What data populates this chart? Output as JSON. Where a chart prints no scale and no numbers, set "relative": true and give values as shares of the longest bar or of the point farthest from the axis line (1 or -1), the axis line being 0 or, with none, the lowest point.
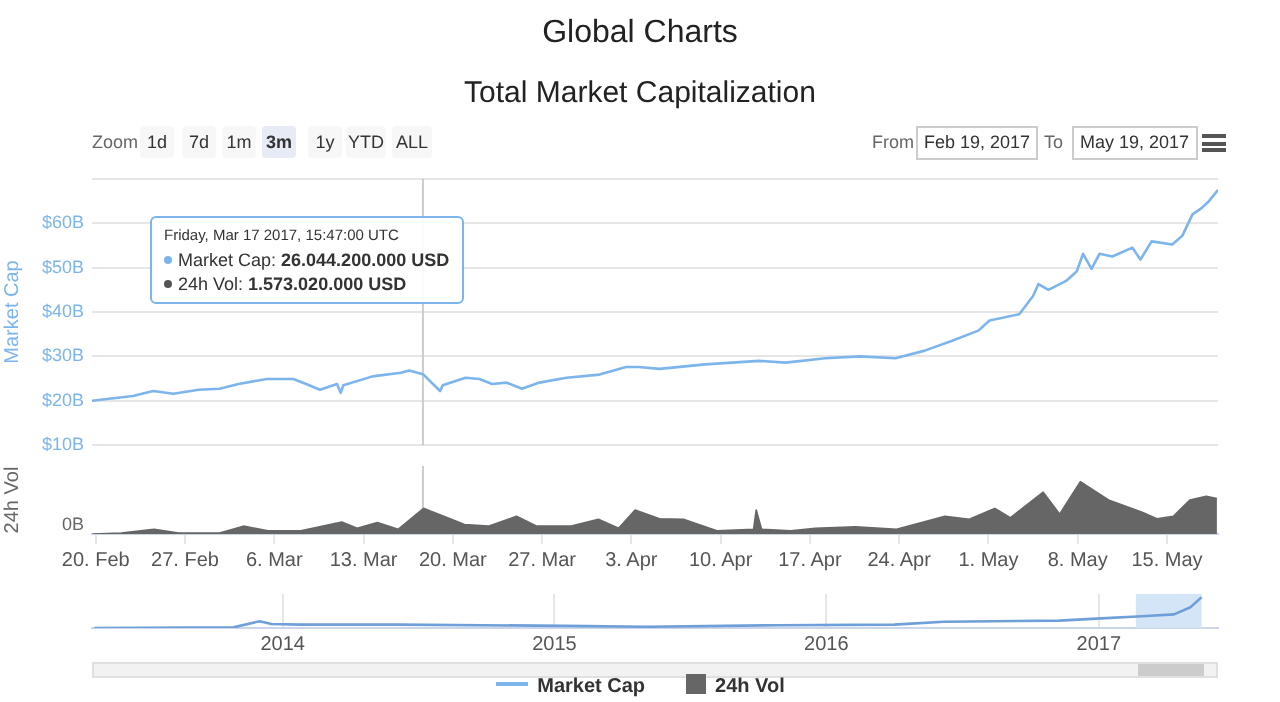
{
  "chart_data": [
    {
      "type": "other",
      "annotations": [
        "Zoom",
        "1d",
        "7d",
        "1m",
        "3m",
        "1y",
        "YTD",
        "ALL",
        "From",
        "Feb 19, 2017",
        "To",
        "May 19, 2017"
      ]
    },
    {
      "type": "line",
      "title": "Global Charts",
      "subtitle": "Total Market Capitalization",
      "ylabel": "Market Cap",
      "legend": "bottom",
      "grid": "y",
      "tick_labels": "y",
      "xlim": [
        "2017-02-19T17:00",
        "2017-05-19T00:00"
      ],
      "ylim": [
        10,
        70
      ],
      "yticks": [
        {
          "value": 10,
          "label": "$10B"
        },
        {
          "value": 20,
          "label": "$20B"
        },
        {
          "value": 30,
          "label": "$30B"
        },
        {
          "value": 40,
          "label": "$40B"
        },
        {
          "value": 50,
          "label": "$50B"
        },
        {
          "value": 60,
          "label": "$60B"
        },
        {
          "value": 70,
          "label": null
        }
      ],
      "ref_lines": [
        {
          "axis": "x",
          "value": "2017-03-17T15:47",
          "color": "#cccccc"
        }
      ],
      "annotations": [
        "Friday, Mar 17 2017, 15:47:00 UTC",
        "Market Cap: 26.044.200.000 USD",
        "24h Vol: 1.573.020.000 USD"
      ],
      "series": [
        {
          "name": "Market Cap",
          "color": "#7cb5ec",
          "x": [
            "2017-02-19T17:00",
            "2017-02-22T22:00",
            "2017-02-24T12:00",
            "2017-02-26T02:00",
            "2017-02-28T02:00",
            "2017-03-01T17:00",
            "2017-03-03T05:00",
            "2017-03-05T10:00",
            "2017-03-07T12:00",
            "2017-03-08T12:00",
            "2017-03-09T14:00",
            "2017-03-10T22:00",
            "2017-03-11T05:00",
            "2017-03-11T10:00",
            "2017-03-13T17:00",
            "2017-03-15T22:00",
            "2017-03-16T14:00",
            "2017-03-17T15:47",
            "2017-03-19T00:00",
            "2017-03-19T05:00",
            "2017-03-21T00:00",
            "2017-03-22T02:00",
            "2017-03-23T02:00",
            "2017-03-24T05:00",
            "2017-03-25T10:00",
            "2017-03-26T19:00",
            "2017-03-28T22:00",
            "2017-03-31T12:00",
            "2017-04-02T14:00",
            "2017-04-03T14:00",
            "2017-04-05T05:00",
            "2017-04-08T19:00",
            "2017-04-13T00:00",
            "2017-04-15T02:00",
            "2017-04-18T05:00",
            "2017-04-20T22:00",
            "2017-04-23T17:00",
            "2017-04-26T00:00",
            "2017-04-28T05:00",
            "2017-04-30T05:00",
            "2017-05-01T02:00",
            "2017-05-03T10:00",
            "2017-05-04T12:00",
            "2017-05-04T22:00",
            "2017-05-05T17:00",
            "2017-05-07T02:00",
            "2017-05-07T22:00",
            "2017-05-08T10:00",
            "2017-05-09T02:00",
            "2017-05-09T17:00",
            "2017-05-10T17:00",
            "2017-05-12T07:00",
            "2017-05-12T22:00",
            "2017-05-13T19:00",
            "2017-05-15T10:00",
            "2017-05-16T05:00",
            "2017-05-17T00:00",
            "2017-05-17T17:00",
            "2017-05-18T05:00",
            "2017-05-19T00:00"
          ],
          "values": [
            20.0,
            21.1,
            22.2,
            21.6,
            22.5,
            22.7,
            23.8,
            24.9,
            24.9,
            23.8,
            22.5,
            23.8,
            21.8,
            23.5,
            25.5,
            26.3,
            26.8,
            26.0,
            22.2,
            23.5,
            25.2,
            24.9,
            23.8,
            24.1,
            22.7,
            24.1,
            25.2,
            25.9,
            27.6,
            27.6,
            27.2,
            28.2,
            29.0,
            28.6,
            29.6,
            30.0,
            29.6,
            31.3,
            33.6,
            35.8,
            38.1,
            39.5,
            43.6,
            46.3,
            45.0,
            47.0,
            49.1,
            53.1,
            49.7,
            53.1,
            52.5,
            54.5,
            51.8,
            55.9,
            55.2,
            57.2,
            62.0,
            63.4,
            64.7,
            67.5
          ]
        }
      ]
    },
    {
      "type": "area",
      "ylabel": "24h Vol",
      "relative": true,
      "legend": "bottom",
      "xlim": [
        "2017-02-19T17:00",
        "2017-05-19T00:00"
      ],
      "xticks": [
        {
          "value": "2017-02-20",
          "label": "20. Feb"
        },
        {
          "value": "2017-02-27",
          "label": "27. Feb"
        },
        {
          "value": "2017-03-06",
          "label": "6. Mar"
        },
        {
          "value": "2017-03-13",
          "label": "13. Mar"
        },
        {
          "value": "2017-03-20",
          "label": "20. Mar"
        },
        {
          "value": "2017-03-27",
          "label": "27. Mar"
        },
        {
          "value": "2017-04-03",
          "label": "3. Apr"
        },
        {
          "value": "2017-04-10",
          "label": "10. Apr"
        },
        {
          "value": "2017-04-17",
          "label": "17. Apr"
        },
        {
          "value": "2017-04-24",
          "label": "24. Apr"
        },
        {
          "value": "2017-05-01",
          "label": "1. May"
        },
        {
          "value": "2017-05-08",
          "label": "8. May"
        },
        {
          "value": "2017-05-15",
          "label": "15. May"
        }
      ],
      "ref_lines": [
        {
          "axis": "x",
          "value": "2017-03-17T15:47",
          "color": "#cccccc"
        }
      ],
      "annotations": [
        "0B"
      ],
      "series": [
        {
          "name": "24h Vol",
          "color": "#666666",
          "x": [
            "2017-02-19T18:00",
            "2017-02-22T00:00",
            "2017-02-24T14:00",
            "2017-02-26T12:00",
            "2017-03-01T17:00",
            "2017-03-03T14:00",
            "2017-03-05T12:00",
            "2017-03-08T02:00",
            "2017-03-11T07:00",
            "2017-03-12T12:00",
            "2017-03-14T02:00",
            "2017-03-15T17:00",
            "2017-03-17T17:00",
            "2017-03-19T07:00",
            "2017-03-20T22:00",
            "2017-03-22T19:00",
            "2017-03-25T00:00",
            "2017-03-26T14:00",
            "2017-03-29T05:00",
            "2017-03-31T10:00",
            "2017-04-02T00:00",
            "2017-04-03T07:00",
            "2017-04-05T05:00",
            "2017-04-07T02:00",
            "2017-04-09T17:00",
            "2017-04-12T14:00",
            "2017-04-12T19:00",
            "2017-04-13T05:00",
            "2017-04-15T12:00",
            "2017-04-17T10:00",
            "2017-04-20T14:00",
            "2017-04-23T19:00",
            "2017-04-27T14:00",
            "2017-04-29T12:00",
            "2017-05-01T12:00",
            "2017-05-02T17:00",
            "2017-05-05T07:00",
            "2017-05-06T14:00",
            "2017-05-08T05:00",
            "2017-05-10T10:00",
            "2017-05-13T00:00",
            "2017-05-14T05:00",
            "2017-05-15T12:00",
            "2017-05-16T19:00",
            "2017-05-18T02:00",
            "2017-05-18T22:00"
          ],
          "values": [
            0,
            0.02,
            0.09,
            0.02,
            0.02,
            0.15,
            0.06,
            0.06,
            0.23,
            0.11,
            0.22,
            0.09,
            0.49,
            0.34,
            0.18,
            0.15,
            0.34,
            0.15,
            0.15,
            0.28,
            0.11,
            0.46,
            0.29,
            0.28,
            0.06,
            0.09,
            0.46,
            0.09,
            0.06,
            0.11,
            0.14,
            0.09,
            0.34,
            0.28,
            0.49,
            0.31,
            0.8,
            0.38,
            1,
            0.65,
            0.42,
            0.29,
            0.34,
            0.65,
            0.72,
            0.68
          ]
        }
      ]
    },
    {
      "type": "line",
      "relative": true,
      "grid": "x",
      "tick_labels": "x",
      "xlim": [
        "2013-04-20",
        "2017-06-10"
      ],
      "xticks": [
        {
          "value": "2014",
          "label": "2014"
        },
        {
          "value": "2015",
          "label": "2015"
        },
        {
          "value": "2016",
          "label": "2016"
        },
        {
          "value": "2017",
          "label": "2017"
        }
      ],
      "bands": [
        {
          "axis": "x",
          "from": "2017-02-19T17:00",
          "to": "2017-05-19T00:00",
          "color": "#d5e5f8"
        }
      ],
      "series": [
        {
          "color": "#6f9fd8",
          "x": [
            "2013-04-23",
            "2013-10-27",
            "2013-12-01",
            "2013-12-17",
            "2014-01-25",
            "2014-06-07",
            "2015-01-15",
            "2015-05-05",
            "2015-10-30",
            "2016-04-01",
            "2016-06-07",
            "2016-11-09",
            "2017-01-04",
            "2017-02-28",
            "2017-04-12",
            "2017-05-04",
            "2017-05-19"
          ],
          "values": [
            0,
            0.02,
            0.22,
            0.13,
            0.11,
            0.11,
            0.07,
            0.04,
            0.09,
            0.11,
            0.2,
            0.24,
            0.31,
            0.38,
            0.44,
            0.67,
            1
          ]
        }
      ]
    }
  ]
}
